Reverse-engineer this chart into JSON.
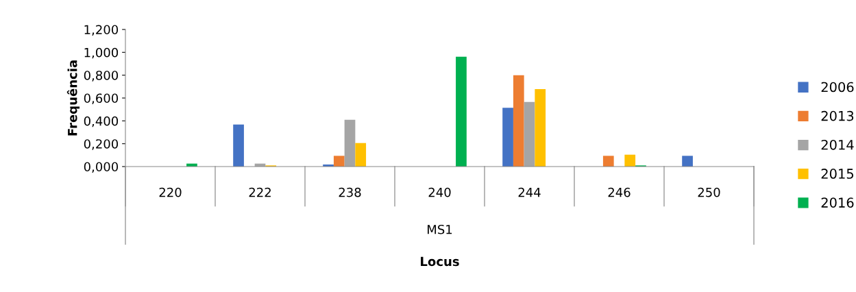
{
  "chart_data": {
    "type": "bar",
    "xlabel": "Locus",
    "ylabel": "Frequência",
    "categories": [
      "220",
      "222",
      "238",
      "240",
      "244",
      "246",
      "250"
    ],
    "series": [
      {
        "name": "2006",
        "color": "#4472c4",
        "values": [
          0,
          0.368,
          0.018,
          0,
          0.514,
          0,
          0.094
        ]
      },
      {
        "name": "2013",
        "color": "#ed7d31",
        "values": [
          0,
          0,
          0.094,
          0,
          0.8,
          0.094,
          0
        ]
      },
      {
        "name": "2014",
        "color": "#a5a5a5",
        "values": [
          0,
          0.026,
          0.41,
          0,
          0.566,
          0,
          0
        ]
      },
      {
        "name": "2015",
        "color": "#ffc000",
        "values": [
          0,
          0.01,
          0.206,
          0,
          0.678,
          0.104,
          0
        ]
      },
      {
        "name": "2016",
        "color": "#00b050",
        "values": [
          0.026,
          0,
          0,
          0.962,
          0,
          0.01,
          0
        ]
      }
    ],
    "ylim": [
      0,
      1.2
    ],
    "yticks": [
      {
        "value": 0,
        "label": "0,000"
      },
      {
        "value": 0.2,
        "label": "0,200"
      },
      {
        "value": 0.4,
        "label": "0,400"
      },
      {
        "value": 0.6,
        "label": "0,600"
      },
      {
        "value": 0.8,
        "label": "0,800"
      },
      {
        "value": 1.0,
        "label": "1,000"
      },
      {
        "value": 1.2,
        "label": "1,200"
      }
    ],
    "annotations": [
      "MS1"
    ],
    "grid": false,
    "legend": "right"
  }
}
